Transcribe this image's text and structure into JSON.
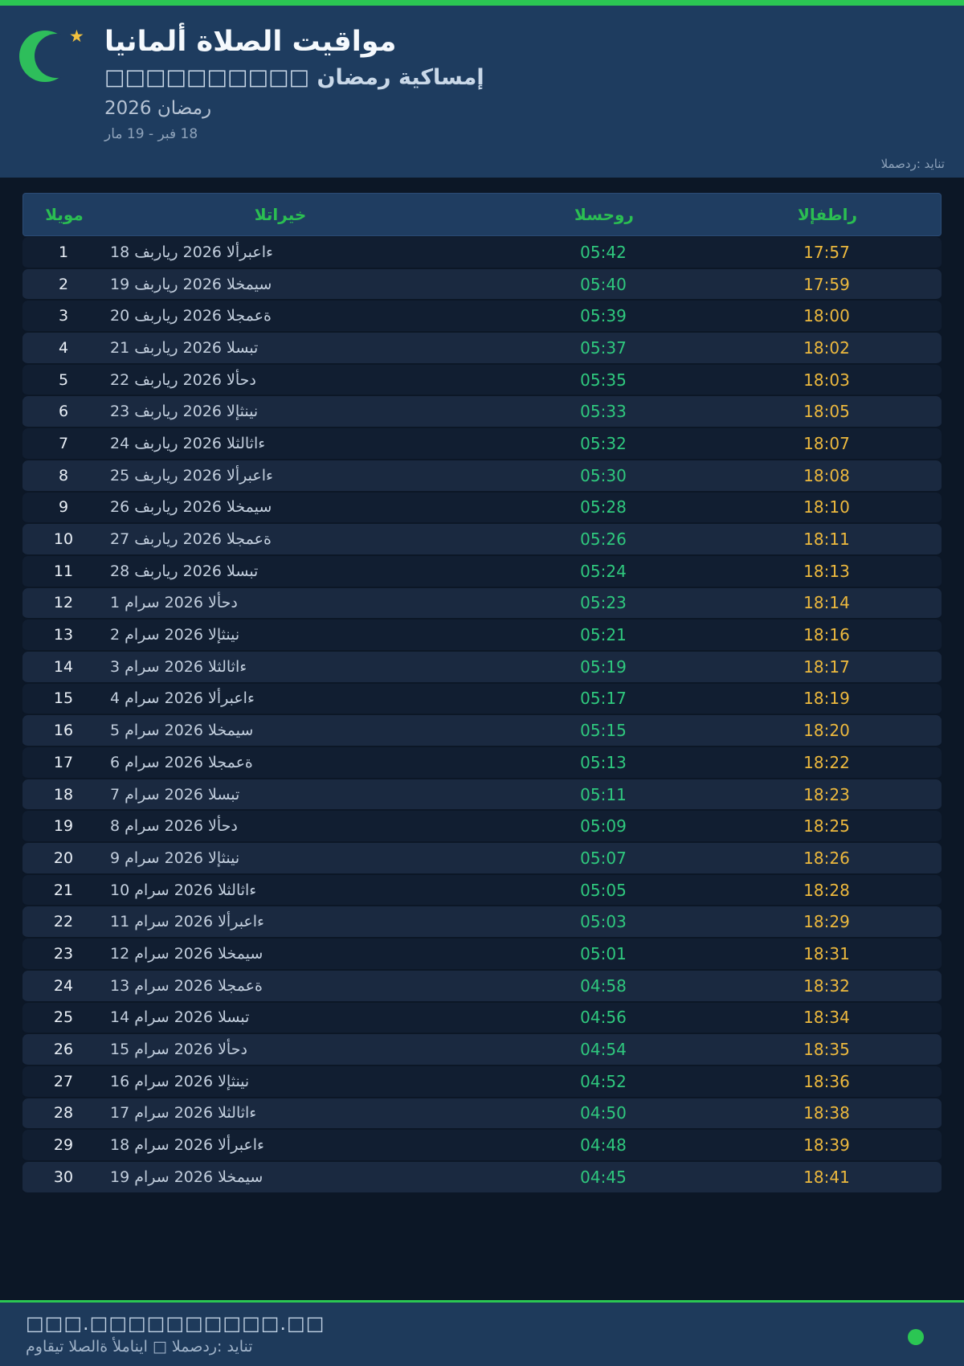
{
  "header": {
    "title": "مواقيت الصلاة ألمانيا",
    "subtitle": "إمساكية رمضان □□□□□□□□□□",
    "season": "رمضان 2026",
    "date_range": "18 فبر - 19 مار",
    "source": "المصدر: ديانت"
  },
  "table": {
    "columns": [
      "اليوم",
      "التاريخ",
      "السحور",
      "الإفطار"
    ],
    "rows": [
      {
        "day": "1",
        "date": "18 فبراير 2026 الأربعاء",
        "suhoor": "05:42",
        "iftar": "17:57"
      },
      {
        "day": "2",
        "date": "19 فبراير 2026 الخميس",
        "suhoor": "05:40",
        "iftar": "17:59"
      },
      {
        "day": "3",
        "date": "20 فبراير 2026 الجمعة",
        "suhoor": "05:39",
        "iftar": "18:00"
      },
      {
        "day": "4",
        "date": "21 فبراير 2026 السبت",
        "suhoor": "05:37",
        "iftar": "18:02"
      },
      {
        "day": "5",
        "date": "22 فبراير 2026 الأحد",
        "suhoor": "05:35",
        "iftar": "18:03"
      },
      {
        "day": "6",
        "date": "23 فبراير 2026 الإثنين",
        "suhoor": "05:33",
        "iftar": "18:05"
      },
      {
        "day": "7",
        "date": "24 فبراير 2026 الثلاثاء",
        "suhoor": "05:32",
        "iftar": "18:07"
      },
      {
        "day": "8",
        "date": "25 فبراير 2026 الأربعاء",
        "suhoor": "05:30",
        "iftar": "18:08"
      },
      {
        "day": "9",
        "date": "26 فبراير 2026 الخميس",
        "suhoor": "05:28",
        "iftar": "18:10"
      },
      {
        "day": "10",
        "date": "27 فبراير 2026 الجمعة",
        "suhoor": "05:26",
        "iftar": "18:11"
      },
      {
        "day": "11",
        "date": "28 فبراير 2026 السبت",
        "suhoor": "05:24",
        "iftar": "18:13"
      },
      {
        "day": "12",
        "date": "1 مارس 2026 الأحد",
        "suhoor": "05:23",
        "iftar": "18:14"
      },
      {
        "day": "13",
        "date": "2 مارس 2026 الإثنين",
        "suhoor": "05:21",
        "iftar": "18:16"
      },
      {
        "day": "14",
        "date": "3 مارس 2026 الثلاثاء",
        "suhoor": "05:19",
        "iftar": "18:17"
      },
      {
        "day": "15",
        "date": "4 مارس 2026 الأربعاء",
        "suhoor": "05:17",
        "iftar": "18:19"
      },
      {
        "day": "16",
        "date": "5 مارس 2026 الخميس",
        "suhoor": "05:15",
        "iftar": "18:20"
      },
      {
        "day": "17",
        "date": "6 مارس 2026 الجمعة",
        "suhoor": "05:13",
        "iftar": "18:22"
      },
      {
        "day": "18",
        "date": "7 مارس 2026 السبت",
        "suhoor": "05:11",
        "iftar": "18:23"
      },
      {
        "day": "19",
        "date": "8 مارس 2026 الأحد",
        "suhoor": "05:09",
        "iftar": "18:25"
      },
      {
        "day": "20",
        "date": "9 مارس 2026 الإثنين",
        "suhoor": "05:07",
        "iftar": "18:26"
      },
      {
        "day": "21",
        "date": "10 مارس 2026 الثلاثاء",
        "suhoor": "05:05",
        "iftar": "18:28"
      },
      {
        "day": "22",
        "date": "11 مارس 2026 الأربعاء",
        "suhoor": "05:03",
        "iftar": "18:29"
      },
      {
        "day": "23",
        "date": "12 مارس 2026 الخميس",
        "suhoor": "05:01",
        "iftar": "18:31"
      },
      {
        "day": "24",
        "date": "13 مارس 2026 الجمعة",
        "suhoor": "04:58",
        "iftar": "18:32"
      },
      {
        "day": "25",
        "date": "14 مارس 2026 السبت",
        "suhoor": "04:56",
        "iftar": "18:34"
      },
      {
        "day": "26",
        "date": "15 مارس 2026 الأحد",
        "suhoor": "04:54",
        "iftar": "18:35"
      },
      {
        "day": "27",
        "date": "16 مارس 2026 الإثنين",
        "suhoor": "04:52",
        "iftar": "18:36"
      },
      {
        "day": "28",
        "date": "17 مارس 2026 الثلاثاء",
        "suhoor": "04:50",
        "iftar": "18:38"
      },
      {
        "day": "29",
        "date": "18 مارس 2026 الأربعاء",
        "suhoor": "04:48",
        "iftar": "18:39"
      },
      {
        "day": "30",
        "date": "19 مارس 2026 الخميس",
        "suhoor": "04:45",
        "iftar": "18:41"
      }
    ]
  },
  "footer": {
    "line1": "□□□.□□□□□□□□□□.□□",
    "line2": "مواقيت الصلاة ألمانيا □ المصدر: ديانت"
  },
  "icons": {
    "logo": "crescent-moon-icon",
    "star": "star-icon",
    "dot": "green-dot"
  },
  "colors": {
    "accent_green": "#2BC653",
    "suhoor_green": "#2FC97E",
    "iftar_amber": "#EDB93E",
    "header_navy": "#1E3C5F",
    "page_bg": "#0C1726"
  }
}
